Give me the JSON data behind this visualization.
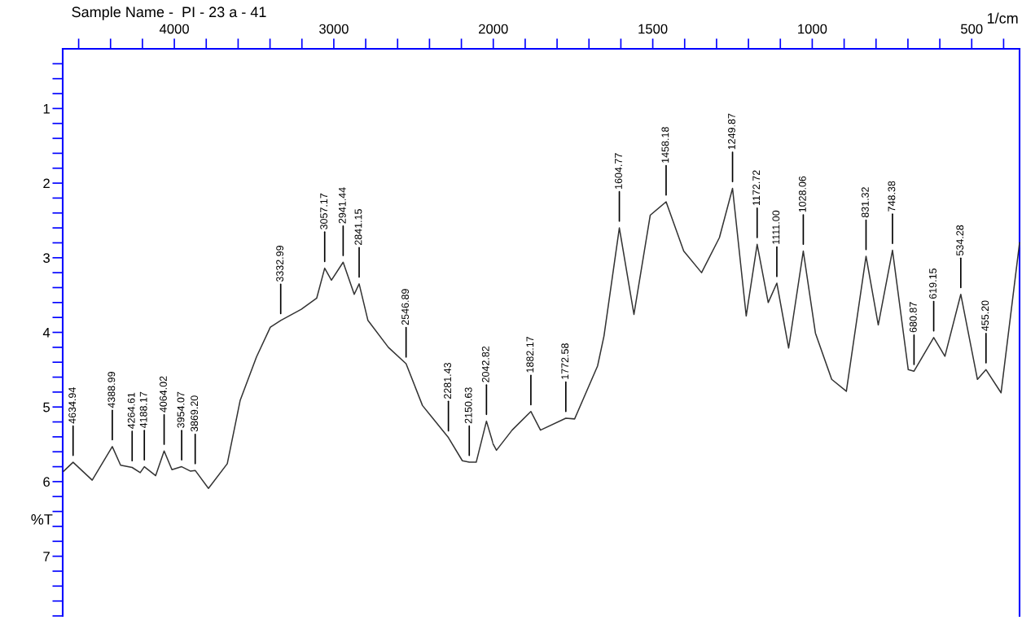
{
  "chart_data": [
    {
      "type": "line",
      "title": "Sample Name -  PI - 23 a - 41",
      "ylabel": "%T",
      "x": [
        4694,
        4634.94,
        4515,
        4388.99,
        4337,
        4264.61,
        4214,
        4188.17,
        4117,
        4064.02,
        4015,
        3954.07,
        3898,
        3869.2,
        3786,
        3668,
        3587,
        3485,
        3398,
        3332.99,
        3204,
        3107,
        3057.17,
        3015,
        2941.44,
        2872,
        2841.15,
        2786,
        2658,
        2546.89,
        2444,
        2281.43,
        2194,
        2150.63,
        2107,
        2042.82,
        2000
      ],
      "values": [
        5.86,
        5.74,
        5.98,
        5.53,
        5.78,
        5.81,
        5.88,
        5.8,
        5.92,
        5.59,
        5.84,
        5.8,
        5.86,
        5.85,
        6.09,
        5.76,
        4.91,
        4.33,
        3.93,
        3.84,
        3.69,
        3.54,
        3.14,
        3.3,
        3.06,
        3.49,
        3.35,
        3.84,
        4.2,
        4.42,
        4.98,
        5.41,
        5.72,
        5.74,
        5.74,
        5.19,
        5.5
      ],
      "color": "#333333",
      "xlim": [
        4700,
        2000
      ],
      "ylim": [
        7.8,
        0.2
      ],
      "xticks": [
        {
          "value": 4600,
          "label": null
        },
        {
          "value": 4400,
          "label": null
        },
        {
          "value": 4200,
          "label": null
        },
        4000,
        {
          "value": 3800,
          "label": null
        },
        {
          "value": 3600,
          "label": null
        },
        {
          "value": 3400,
          "label": null
        },
        {
          "value": 3200,
          "label": null
        },
        3000,
        {
          "value": 2800,
          "label": null
        },
        {
          "value": 2600,
          "label": null
        },
        {
          "value": 2400,
          "label": null
        },
        {
          "value": 2200,
          "label": null
        }
      ],
      "yticks": [
        {
          "value": 0.4,
          "label": null
        },
        {
          "value": 0.6,
          "label": null
        },
        {
          "value": 0.8,
          "label": null
        },
        1,
        {
          "value": 1.2,
          "label": null
        },
        {
          "value": 1.4,
          "label": null
        },
        {
          "value": 1.6,
          "label": null
        },
        {
          "value": 1.8,
          "label": null
        },
        2,
        {
          "value": 2.2,
          "label": null
        },
        {
          "value": 2.4,
          "label": null
        },
        {
          "value": 2.6,
          "label": null
        },
        {
          "value": 2.8,
          "label": null
        },
        3,
        {
          "value": 3.2,
          "label": null
        },
        {
          "value": 3.4,
          "label": null
        },
        {
          "value": 3.6,
          "label": null
        },
        {
          "value": 3.8,
          "label": null
        },
        4,
        {
          "value": 4.2,
          "label": null
        },
        {
          "value": 4.4,
          "label": null
        },
        {
          "value": 4.6,
          "label": null
        },
        {
          "value": 4.8,
          "label": null
        },
        5,
        {
          "value": 5.2,
          "label": null
        },
        {
          "value": 5.4,
          "label": null
        },
        {
          "value": 5.6,
          "label": null
        },
        {
          "value": 5.8,
          "label": null
        },
        6,
        {
          "value": 6.2,
          "label": null
        },
        {
          "value": 6.4,
          "label": null
        },
        {
          "value": 6.6,
          "label": null
        },
        {
          "value": 6.8,
          "label": null
        },
        7,
        {
          "value": 7.2,
          "label": null
        },
        {
          "value": 7.4,
          "label": null
        },
        {
          "value": 7.6,
          "label": null
        },
        {
          "value": 7.8,
          "label": null
        }
      ],
      "annotations": [
        {
          "text": "4634.94",
          "x": 4634.94,
          "y": 5.74
        },
        {
          "text": "4388.99",
          "x": 4388.99,
          "y": 5.53
        },
        {
          "text": "4264.61",
          "x": 4264.61,
          "y": 5.81
        },
        {
          "text": "4188.17",
          "x": 4188.17,
          "y": 5.8
        },
        {
          "text": "4064.02",
          "x": 4064.02,
          "y": 5.59
        },
        {
          "text": "3954.07",
          "x": 3954.07,
          "y": 5.8
        },
        {
          "text": "3869.20",
          "x": 3869.2,
          "y": 5.85
        },
        {
          "text": "3332.99",
          "x": 3332.99,
          "y": 3.84
        },
        {
          "text": "3057.17",
          "x": 3057.17,
          "y": 3.14
        },
        {
          "text": "2941.44",
          "x": 2941.44,
          "y": 3.06
        },
        {
          "text": "2841.15",
          "x": 2841.15,
          "y": 3.35
        },
        {
          "text": "2546.89",
          "x": 2546.89,
          "y": 4.42
        },
        {
          "text": "2281.43",
          "x": 2281.43,
          "y": 5.41
        },
        {
          "text": "2150.63",
          "x": 2150.63,
          "y": 5.74
        },
        {
          "text": "2042.82",
          "x": 2042.82,
          "y": 5.19
        }
      ]
    },
    {
      "type": "line",
      "xlabel": "1/cm",
      "tick_labels": "x",
      "x": [
        2000,
        1990,
        1941,
        1882.17,
        1852,
        1772.58,
        1745,
        1673,
        1653,
        1604.77,
        1559,
        1508,
        1458.18,
        1403,
        1347,
        1291,
        1249.87,
        1207,
        1172.72,
        1138,
        1111.0,
        1074,
        1028.06,
        990,
        939,
        893,
        831.32,
        793,
        748.38,
        699,
        680.87,
        619.15,
        584,
        534.28,
        482,
        455.2,
        408,
        350
      ],
      "values": [
        5.5,
        5.58,
        5.31,
        5.06,
        5.31,
        5.15,
        5.16,
        4.45,
        4.05,
        2.6,
        3.76,
        2.43,
        2.25,
        2.91,
        3.2,
        2.73,
        2.07,
        3.78,
        2.82,
        3.6,
        3.34,
        4.21,
        2.91,
        4.01,
        4.63,
        4.79,
        2.98,
        3.9,
        2.9,
        4.5,
        4.52,
        4.07,
        4.32,
        3.49,
        4.63,
        4.5,
        4.81,
        2.8
      ],
      "color": "#333333",
      "xlim": [
        2000,
        350
      ],
      "ylim": [
        7.8,
        0.2
      ],
      "xticks": [
        2000,
        {
          "value": 1900,
          "label": null
        },
        {
          "value": 1800,
          "label": null
        },
        {
          "value": 1700,
          "label": null
        },
        {
          "value": 1600,
          "label": null
        },
        1500,
        {
          "value": 1400,
          "label": null
        },
        {
          "value": 1300,
          "label": null
        },
        {
          "value": 1200,
          "label": null
        },
        {
          "value": 1100,
          "label": null
        },
        1000,
        {
          "value": 900,
          "label": null
        },
        {
          "value": 800,
          "label": null
        },
        {
          "value": 700,
          "label": null
        },
        {
          "value": 600,
          "label": null
        },
        500,
        {
          "value": 400,
          "label": null
        }
      ],
      "annotations": [
        {
          "text": "1882.17",
          "x": 1882.17,
          "y": 5.06
        },
        {
          "text": "1772.58",
          "x": 1772.58,
          "y": 5.15
        },
        {
          "text": "1604.77",
          "x": 1604.77,
          "y": 2.6
        },
        {
          "text": "1458.18",
          "x": 1458.18,
          "y": 2.25
        },
        {
          "text": "1249.87",
          "x": 1249.87,
          "y": 2.07
        },
        {
          "text": "1172.72",
          "x": 1172.72,
          "y": 2.82
        },
        {
          "text": "1111.00",
          "x": 1111.0,
          "y": 3.34
        },
        {
          "text": "1028.06",
          "x": 1028.06,
          "y": 2.91
        },
        {
          "text": "831.32",
          "x": 831.32,
          "y": 2.98
        },
        {
          "text": "748.38",
          "x": 748.38,
          "y": 2.9
        },
        {
          "text": "680.87",
          "x": 680.87,
          "y": 4.52
        },
        {
          "text": "619.15",
          "x": 619.15,
          "y": 4.07
        },
        {
          "text": "534.28",
          "x": 534.28,
          "y": 3.49
        },
        {
          "text": "455.20",
          "x": 455.2,
          "y": 4.5
        }
      ]
    }
  ]
}
